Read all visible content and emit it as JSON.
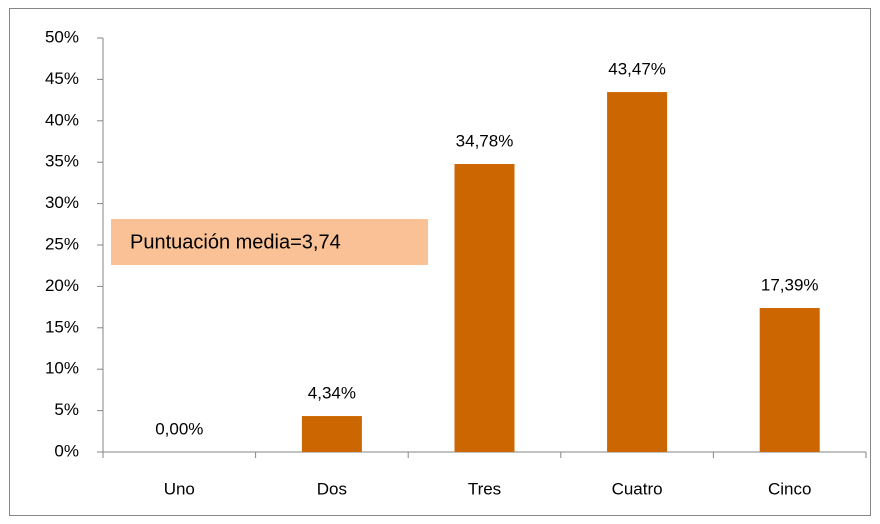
{
  "chart_data": {
    "type": "bar",
    "categories": [
      "Uno",
      "Dos",
      "Tres",
      "Cuatro",
      "Cinco"
    ],
    "values": [
      0,
      4.34,
      34.78,
      43.47,
      17.39
    ],
    "value_labels": [
      "0,00%",
      "4,34%",
      "34,78%",
      "43,47%",
      "17,39%"
    ],
    "color": "#cc6600",
    "ylim": [
      0,
      50
    ],
    "yticks": [
      {
        "value": 0,
        "label": "0%"
      },
      {
        "value": 5,
        "label": "5%"
      },
      {
        "value": 10,
        "label": "10%"
      },
      {
        "value": 15,
        "label": "15%"
      },
      {
        "value": 20,
        "label": "20%"
      },
      {
        "value": 25,
        "label": "25%"
      },
      {
        "value": 30,
        "label": "30%"
      },
      {
        "value": 35,
        "label": "35%"
      },
      {
        "value": 40,
        "label": "40%"
      },
      {
        "value": 45,
        "label": "45%"
      },
      {
        "value": 50,
        "label": "50%"
      }
    ],
    "annotation": "Puntuación media=3,74",
    "annotation_color": "#f9c195",
    "grid": false
  }
}
